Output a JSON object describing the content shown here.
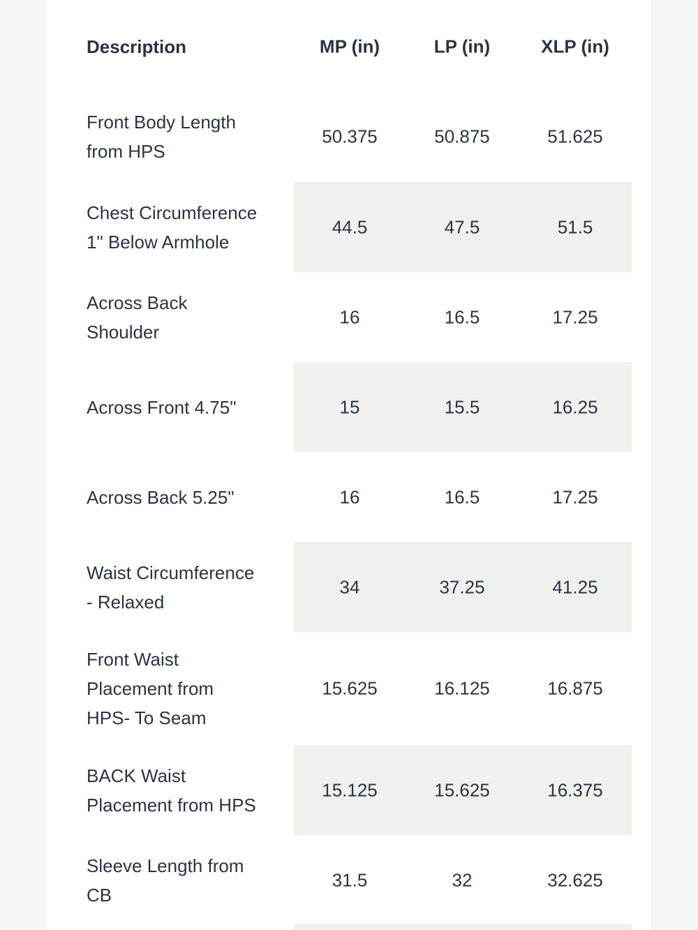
{
  "table": {
    "header": [
      "Description",
      "MP (in)",
      "LP (in)",
      "XLP (in)"
    ],
    "rows": [
      {
        "description": [
          "Front Body Length",
          "from HPS"
        ],
        "values": [
          "50.375",
          "50.875",
          "51.625"
        ]
      },
      {
        "description": [
          "Chest Circumference",
          "1\" Below Armhole"
        ],
        "values": [
          "44.5",
          "47.5",
          "51.5"
        ]
      },
      {
        "description": [
          "Across Back",
          "Shoulder"
        ],
        "values": [
          "16",
          "16.5",
          "17.25"
        ]
      },
      {
        "description": [
          "Across Front 4.75\""
        ],
        "values": [
          "15",
          "15.5",
          "16.25"
        ]
      },
      {
        "description": [
          "Across Back 5.25\""
        ],
        "values": [
          "16",
          "16.5",
          "17.25"
        ]
      },
      {
        "description": [
          "Waist Circumference",
          "- Relaxed"
        ],
        "values": [
          "34",
          "37.25",
          "41.25"
        ]
      },
      {
        "description": [
          "Front Waist",
          "Placement from",
          "HPS- To Seam"
        ],
        "values": [
          "15.625",
          "16.125",
          "16.875"
        ]
      },
      {
        "description": [
          "BACK Waist",
          "Placement from HPS"
        ],
        "values": [
          "15.125",
          "15.625",
          "16.375"
        ]
      },
      {
        "description": [
          "Sleeve Length from",
          "CB"
        ],
        "values": [
          "31.5",
          "32",
          "32.625"
        ]
      }
    ]
  }
}
